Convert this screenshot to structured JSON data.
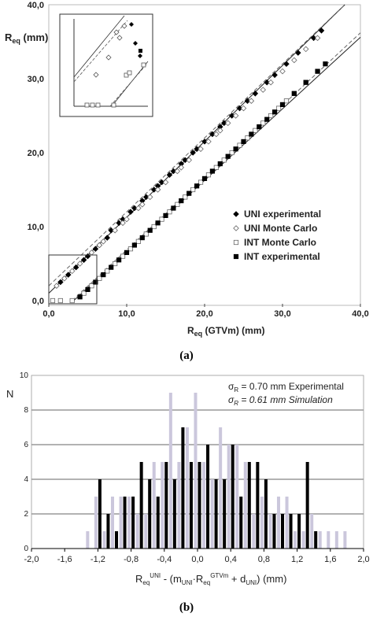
{
  "chart_data": [
    {
      "type": "scatter",
      "panel_label": "(a)",
      "ylabel": "Req (mm)",
      "ylabel_main": "R",
      "ylabel_sub": "eq",
      "ylabel_rest": " (mm)",
      "xlabel": "Req (GTVm) (mm)",
      "xlabel_main": "R",
      "xlabel_sub": "eq",
      "xlabel_rest": " (GTVm) (mm)",
      "xlim": [
        0,
        40
      ],
      "ylim": [
        0,
        40
      ],
      "xticks": [
        "0,0",
        "10,0",
        "20,0",
        "30,0",
        "40,0"
      ],
      "yticks": [
        "0,0",
        "10,0",
        "20,0",
        "30,0",
        "40,0"
      ],
      "xtick_values": [
        0,
        10,
        20,
        30,
        40
      ],
      "ytick_values": [
        0,
        10,
        20,
        30,
        40
      ],
      "grid": false,
      "legend_position": "right-middle",
      "colors": {
        "uni_exp": "#000000",
        "uni_mc": "#888888",
        "int_mc": "#888888",
        "int_exp": "#000000"
      },
      "series": [
        {
          "name": "UNI experimental",
          "marker": "diamond-filled",
          "x": [
            1.5,
            2.5,
            3.5,
            4.5,
            5.0,
            6.0,
            6.5,
            7.5,
            8.0,
            9.0,
            9.5,
            10.5,
            11.0,
            12.0,
            12.5,
            13.5,
            14.0,
            14.5,
            15.5,
            16.0,
            17.0,
            17.5,
            18.5,
            19.0,
            20.0,
            21.0,
            22.0,
            22.5,
            23.5,
            24.5,
            25.5,
            26.5,
            28.0,
            29.0,
            30.5,
            32.0,
            34.0,
            35.0
          ],
          "y": [
            2.5,
            3.5,
            4.5,
            5.5,
            6.0,
            7.0,
            7.5,
            8.5,
            9.5,
            10.5,
            11.0,
            12.0,
            12.5,
            13.5,
            14.0,
            15.0,
            15.5,
            16.0,
            17.0,
            17.5,
            18.5,
            19.0,
            20.0,
            20.5,
            21.5,
            22.5,
            23.5,
            24.0,
            25.0,
            26.0,
            27.0,
            28.0,
            29.5,
            30.5,
            32.0,
            33.5,
            35.5,
            36.5
          ]
        },
        {
          "name": "UNI Monte Carlo",
          "marker": "diamond-open",
          "x": [
            1.0,
            2.0,
            3.0,
            4.0,
            5.5,
            6.5,
            7.0,
            8.5,
            9.5,
            10.0,
            11.5,
            12.0,
            13.0,
            14.0,
            15.0,
            16.5,
            17.0,
            18.0,
            19.5,
            20.5,
            21.5,
            22.0,
            23.0,
            24.0,
            25.0,
            26.0,
            27.5,
            28.5,
            30.0,
            31.5,
            33.0,
            34.5
          ],
          "y": [
            2.0,
            3.0,
            4.0,
            5.0,
            6.5,
            7.5,
            8.0,
            9.5,
            10.5,
            11.0,
            12.5,
            13.0,
            14.0,
            15.0,
            16.0,
            17.5,
            18.0,
            19.0,
            20.5,
            21.5,
            22.5,
            23.0,
            24.0,
            25.0,
            26.0,
            27.0,
            28.5,
            29.5,
            31.0,
            32.5,
            34.0,
            35.5
          ]
        },
        {
          "name": "INT Monte Carlo",
          "marker": "square-open",
          "x": [
            0.5,
            1.5,
            3.0,
            4.5,
            5.5,
            6.5,
            7.5,
            8.5,
            9.5,
            10.5,
            11.5,
            12.5,
            13.5,
            14.5,
            15.5,
            16.5,
            17.5,
            18.5,
            19.5,
            20.5,
            21.5,
            22.5,
            23.5,
            24.5,
            25.5,
            26.5,
            27.5,
            28.5,
            29.5,
            30.5,
            31.5,
            33.0,
            34.5
          ],
          "y": [
            0.0,
            0.0,
            0.0,
            1.0,
            2.0,
            3.0,
            4.0,
            5.0,
            6.0,
            7.0,
            8.0,
            9.0,
            10.0,
            11.0,
            12.0,
            13.0,
            14.0,
            15.0,
            16.0,
            17.0,
            18.0,
            19.0,
            20.0,
            21.0,
            22.0,
            23.0,
            24.0,
            25.0,
            26.0,
            27.0,
            28.0,
            29.5,
            31.0
          ]
        },
        {
          "name": "INT experimental",
          "marker": "square-filled",
          "x": [
            4.0,
            5.0,
            6.0,
            7.0,
            8.0,
            9.0,
            10.0,
            11.0,
            12.0,
            13.0,
            14.0,
            15.0,
            16.0,
            17.0,
            18.0,
            19.0,
            20.0,
            21.0,
            22.0,
            23.0,
            24.0,
            25.0,
            26.0,
            27.0,
            28.0,
            29.0,
            30.0,
            31.5,
            33.0,
            34.5,
            35.5
          ],
          "y": [
            0.5,
            1.5,
            2.5,
            3.5,
            4.5,
            5.5,
            6.5,
            7.5,
            8.5,
            9.5,
            10.5,
            11.5,
            12.5,
            13.5,
            14.5,
            15.5,
            16.5,
            17.5,
            18.5,
            19.5,
            20.5,
            21.5,
            22.5,
            23.5,
            24.5,
            25.5,
            26.5,
            28.0,
            29.5,
            31.0,
            32.0
          ]
        }
      ],
      "fit_lines": [
        {
          "style": "solid",
          "x": [
            0,
            38
          ],
          "y": [
            1.0,
            40
          ]
        },
        {
          "style": "dashed",
          "x": [
            0,
            38
          ],
          "y": [
            2.0,
            40
          ]
        },
        {
          "style": "solid",
          "x": [
            3.2,
            40
          ],
          "y": [
            0,
            35.6
          ]
        },
        {
          "style": "dashed",
          "x": [
            3.0,
            40
          ],
          "y": [
            0,
            36.2
          ]
        }
      ]
    },
    {
      "type": "bar",
      "panel_label": "(b)",
      "ylabel": "N",
      "xlabel_main": "R",
      "xlabel_sub1": "eq",
      "xlabel_sup1": "UNI",
      "xlabel_mid": " - (m",
      "xlabel_sub2": "UNI",
      "xlabel_dot": "·R",
      "xlabel_sub3": "eq",
      "xlabel_sup3": "GTVm",
      "xlabel_mid2": " + d",
      "xlabel_sub4": "UNI",
      "xlabel_end": ") (mm)",
      "xlim": [
        -2.0,
        2.0
      ],
      "ylim": [
        0,
        10
      ],
      "xticks": [
        "-2,0",
        "-1,6",
        "-1,2",
        "-0,8",
        "-0,4",
        "0,0",
        "0,4",
        "0,8",
        "1,2",
        "1,6",
        "2,0"
      ],
      "xtick_values": [
        -2.0,
        -1.6,
        -1.2,
        -0.8,
        -0.4,
        0.0,
        0.4,
        0.8,
        1.2,
        1.6,
        2.0
      ],
      "yticks": [
        "0",
        "2",
        "4",
        "6",
        "8",
        "10"
      ],
      "ytick_values": [
        0,
        2,
        4,
        6,
        8,
        10
      ],
      "grid": true,
      "annotations": {
        "sigma_exp_prefix": "σ",
        "sigma_exp_sub": "R",
        "sigma_exp_rest": " = 0.70 mm Experimental",
        "sigma_sim_prefix": "σ",
        "sigma_sim_sub": "R",
        "sigma_sim_rest": " = 0.61 mm Simulation"
      },
      "colors": {
        "experimental": "#000000",
        "simulation": "#cbc7dc"
      },
      "bin_centers": [
        -1.3,
        -1.2,
        -1.1,
        -1.0,
        -0.9,
        -0.8,
        -0.7,
        -0.6,
        -0.5,
        -0.4,
        -0.3,
        -0.2,
        -0.1,
        0.0,
        0.1,
        0.2,
        0.3,
        0.4,
        0.5,
        0.6,
        0.7,
        0.8,
        0.9,
        1.0,
        1.1,
        1.2,
        1.3,
        1.4,
        1.5,
        1.6,
        1.7,
        1.8
      ],
      "series": [
        {
          "name": "Experimental",
          "values": [
            0,
            4,
            2,
            1,
            3,
            3,
            5,
            4,
            3,
            5,
            4,
            7,
            5,
            5,
            6,
            4,
            4,
            6,
            3,
            5,
            5,
            4,
            2,
            2,
            2,
            2,
            5,
            1,
            0,
            0,
            0,
            0
          ]
        },
        {
          "name": "Simulation",
          "values": [
            1,
            3,
            1,
            3,
            3,
            3,
            2,
            2,
            5,
            5,
            9,
            5,
            7,
            9,
            5,
            4,
            7,
            6,
            6,
            5,
            2,
            3,
            2,
            3,
            3,
            1,
            1,
            2,
            1,
            1,
            1,
            1
          ]
        }
      ]
    }
  ]
}
